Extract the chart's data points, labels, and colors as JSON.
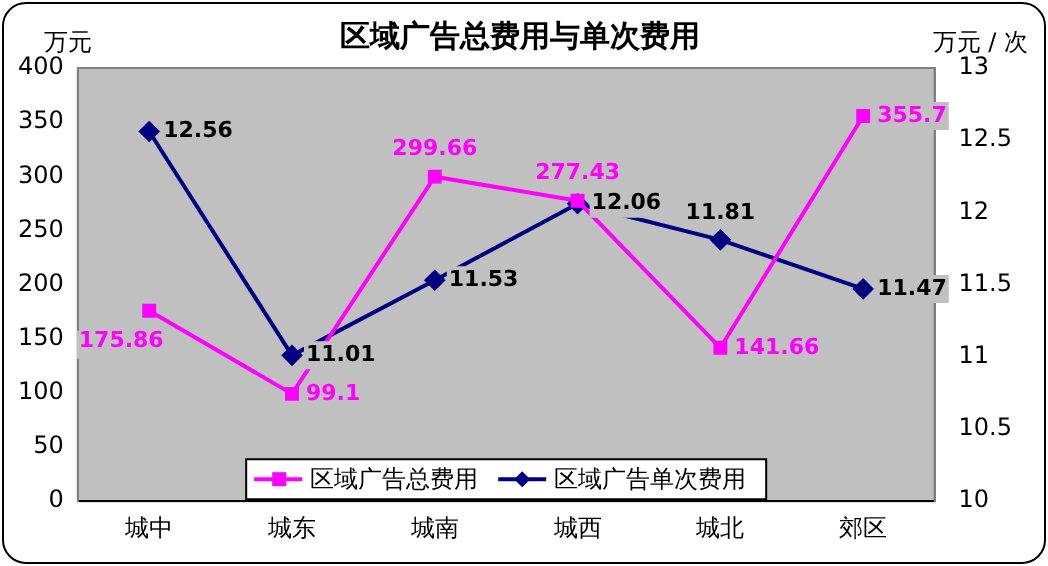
{
  "chart_data": {
    "type": "line",
    "title": "区域广告总费用与单次费用",
    "ylabel": "万元",
    "y2label": "万元 / 次",
    "categories": [
      "城中",
      "城东",
      "城南",
      "城西",
      "城北",
      "郊区"
    ],
    "series": [
      {
        "name": "区域广告总费用",
        "color": "#ff00ff",
        "marker": "square",
        "values": [
          175.86,
          99.1,
          299.66,
          277.43,
          141.66,
          355.7
        ]
      },
      {
        "name": "区域广告单次费用",
        "color": "#000080",
        "marker": "diamond",
        "axis": "y2",
        "values": [
          12.56,
          11.01,
          11.53,
          12.06,
          11.81,
          11.47
        ]
      }
    ],
    "ylim": [
      0,
      400
    ],
    "yticks": [
      0,
      50,
      100,
      150,
      200,
      250,
      300,
      350,
      400
    ],
    "y2lim": [
      10,
      13
    ],
    "y2ticks": [
      10,
      10.5,
      11,
      11.5,
      12,
      12.5,
      13
    ],
    "data_labels": true,
    "legend": "bottom",
    "grid": false
  }
}
